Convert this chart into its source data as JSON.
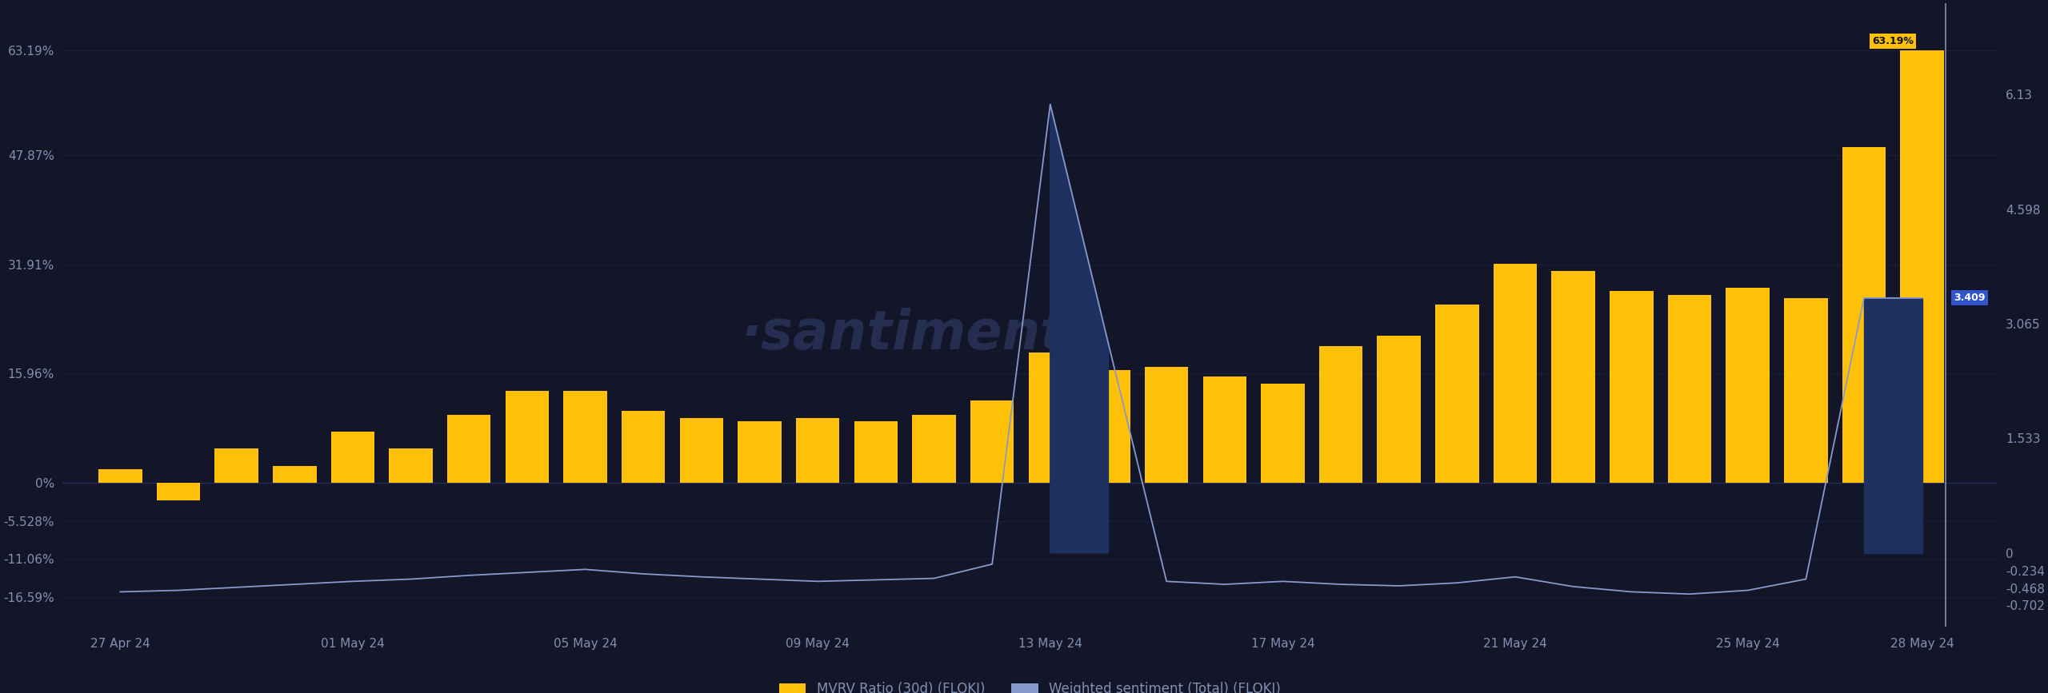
{
  "bg_color": "#131629",
  "bar_color": "#FFC107",
  "line_color": "#8899CC",
  "fill_color": "#1E3060",
  "watermark": "·santiment.",
  "watermark_color": "#252d50",
  "left_axis_label": "MVRV Ratio (30d) (FLOKI)",
  "right_axis_label": "Weighted sentiment (Total) (FLOKI)",
  "left_yticks": [
    -16.59,
    -11.06,
    -5.528,
    0.0,
    15.96,
    31.91,
    47.87,
    63.19
  ],
  "left_ytick_labels": [
    "-16.59%",
    "-11.06%",
    "-5.528%",
    "0%",
    "15.96%",
    "31.91%",
    "47.87%",
    "63.19%"
  ],
  "right_yticks": [
    -0.702,
    -0.468,
    -0.234,
    0.0,
    1.533,
    3.065,
    4.598,
    6.13
  ],
  "right_ytick_labels": [
    "-0.702",
    "-0.468",
    "-0.234",
    "0",
    "1.533",
    "3.065",
    "4.598",
    "6.13"
  ],
  "left_ylim": [
    -21.0,
    70.0
  ],
  "right_ylim": [
    -0.99,
    7.35
  ],
  "xtick_labels": [
    "27 Apr 24",
    "01 May 24",
    "05 May 24",
    "09 May 24",
    "13 May 24",
    "17 May 24",
    "21 May 24",
    "25 May 24",
    "28 May 24"
  ],
  "bar_values": [
    2.0,
    -2.5,
    5.0,
    2.5,
    7.5,
    5.0,
    10.0,
    13.5,
    13.5,
    10.5,
    9.5,
    9.0,
    9.5,
    9.0,
    10.0,
    12.0,
    19.0,
    16.5,
    17.0,
    15.5,
    14.5,
    20.0,
    21.5,
    26.0,
    32.0,
    31.0,
    28.0,
    27.5,
    28.5,
    27.0,
    49.0,
    63.19
  ],
  "line_values": [
    -0.52,
    -0.5,
    -0.46,
    -0.42,
    -0.38,
    -0.35,
    -0.3,
    -0.26,
    -0.22,
    -0.28,
    -0.32,
    -0.35,
    -0.38,
    -0.36,
    -0.34,
    -0.15,
    6.0,
    2.8,
    -0.38,
    -0.42,
    -0.38,
    -0.42,
    -0.44,
    -0.4,
    -0.32,
    -0.45,
    -0.52,
    -0.55,
    -0.5,
    -0.35,
    3.409,
    3.409
  ],
  "annotation_label": "63.19%",
  "annotation_value_right": "3.409",
  "last_bar_idx": 31,
  "font_color": "#8090b0",
  "grid_color": "#1e2645"
}
